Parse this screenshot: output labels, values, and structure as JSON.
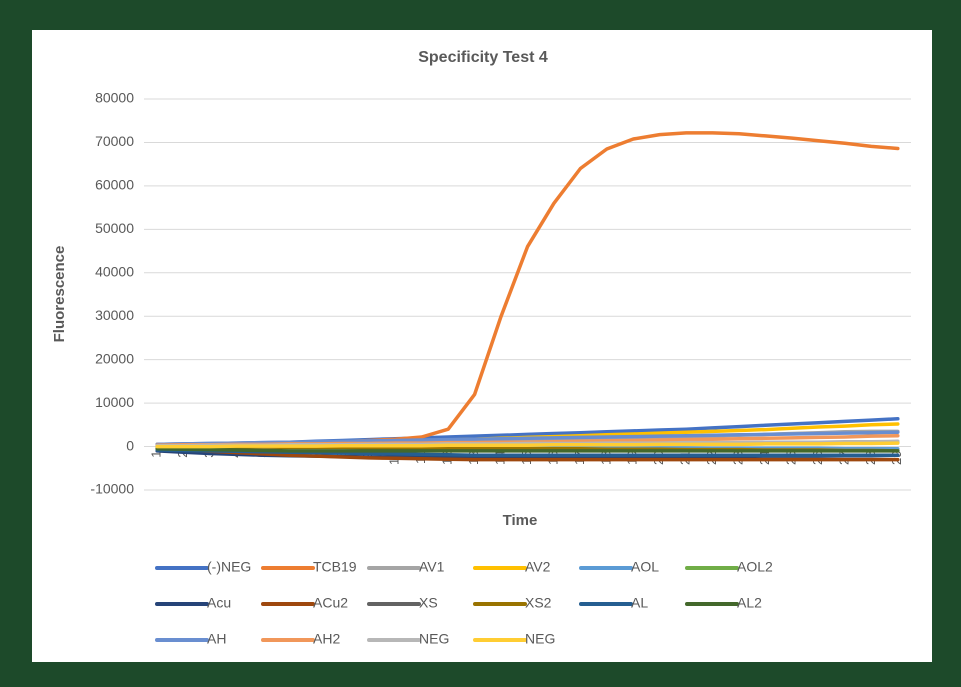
{
  "chart_data": {
    "type": "line",
    "title": "Specificity Test 4",
    "x_label": "Time",
    "y_label": "Fluorescence",
    "categories": [
      "1",
      "2",
      "3",
      "4",
      "5",
      "6",
      "7",
      "8",
      "9",
      "10",
      "11",
      "12",
      "13",
      "14",
      "15",
      "16",
      "17",
      "18",
      "19",
      "20",
      "21",
      "22",
      "23",
      "24",
      "25",
      "26",
      "27",
      "28",
      "29"
    ],
    "ylim": [
      -10000,
      80000
    ],
    "yticks": [
      -10000,
      0,
      10000,
      20000,
      30000,
      40000,
      50000,
      60000,
      70000,
      80000
    ],
    "grid": true,
    "legend": "bottom",
    "series": [
      {
        "name": "(-)NEG",
        "color": "#4472c4",
        "values": [
          500,
          600,
          700,
          800,
          900,
          1000,
          1200,
          1400,
          1600,
          1800,
          2000,
          2200,
          2400,
          2600,
          2800,
          3000,
          3200,
          3400,
          3600,
          3800,
          4000,
          4300,
          4600,
          4900,
          5200,
          5500,
          5800,
          6100,
          6400
        ]
      },
      {
        "name": "TCB19",
        "color": "#ed7d31",
        "values": [
          500,
          300,
          300,
          400,
          500,
          700,
          900,
          1100,
          1400,
          1700,
          2200,
          4000,
          12000,
          30000,
          46000,
          56000,
          64000,
          68500,
          70800,
          71800,
          72200,
          72200,
          72000,
          71500,
          71000,
          70400,
          69800,
          69100,
          68600
        ]
      },
      {
        "name": "AV1",
        "color": "#a5a5a5",
        "values": [
          300,
          400,
          500,
          600,
          700,
          800,
          900,
          1000,
          1100,
          1200,
          1300,
          1400,
          1500,
          1600,
          1700,
          1800,
          1900,
          2000,
          2100,
          2200,
          2300,
          2400,
          2600,
          2800,
          3000,
          3200,
          3400,
          3500,
          3500
        ]
      },
      {
        "name": "AV2",
        "color": "#ffc000",
        "values": [
          200,
          300,
          400,
          500,
          600,
          700,
          800,
          900,
          1000,
          1100,
          1300,
          1500,
          1700,
          1900,
          2100,
          2300,
          2500,
          2700,
          2900,
          3100,
          3300,
          3500,
          3700,
          3900,
          4200,
          4500,
          4700,
          5000,
          5200
        ]
      },
      {
        "name": "AOL",
        "color": "#5b9bd5",
        "values": [
          300,
          300,
          200,
          200,
          100,
          100,
          0,
          0,
          0,
          -100,
          -100,
          -100,
          -200,
          -200,
          -200,
          -200,
          -300,
          -300,
          -300,
          -300,
          -300,
          -400,
          -400,
          -400,
          -400,
          -400,
          -500,
          -500,
          -500
        ]
      },
      {
        "name": "AOL2",
        "color": "#70ad47",
        "values": [
          100,
          100,
          100,
          200,
          200,
          200,
          300,
          300,
          300,
          400,
          400,
          400,
          500,
          500,
          500,
          600,
          600,
          600,
          700,
          700,
          700,
          800,
          800,
          800,
          900,
          900,
          900,
          1000,
          1000
        ]
      },
      {
        "name": "Acu",
        "color": "#264478",
        "values": [
          -1000,
          -1300,
          -1600,
          -1800,
          -2000,
          -2100,
          -2200,
          -2300,
          -2400,
          -2400,
          -2500,
          -2500,
          -2500,
          -2500,
          -2500,
          -2500,
          -2500,
          -2400,
          -2400,
          -2400,
          -2300,
          -2300,
          -2300,
          -2200,
          -2200,
          -2200,
          -2100,
          -2100,
          -2000
        ]
      },
      {
        "name": "ACu2",
        "color": "#9e480e",
        "values": [
          -500,
          -800,
          -1100,
          -1400,
          -1700,
          -2000,
          -2200,
          -2400,
          -2600,
          -2700,
          -2800,
          -2900,
          -3000,
          -3000,
          -3000,
          -3000,
          -3000,
          -3000,
          -3000,
          -3000,
          -3000,
          -3000,
          -3000,
          -3000,
          -3000,
          -3000,
          -3000,
          -3000,
          -3000
        ]
      },
      {
        "name": "XS",
        "color": "#636363",
        "values": [
          0,
          0,
          100,
          100,
          100,
          200,
          200,
          200,
          300,
          300,
          300,
          400,
          400,
          400,
          500,
          500,
          500,
          600,
          600,
          600,
          700,
          700,
          700,
          800,
          800,
          800,
          900,
          900,
          1000
        ]
      },
      {
        "name": "XS2",
        "color": "#997300",
        "values": [
          0,
          0,
          -100,
          -100,
          -100,
          -200,
          -200,
          -200,
          -300,
          -300,
          -300,
          -400,
          -400,
          -400,
          -500,
          -500,
          -500,
          -600,
          -600,
          -600,
          -700,
          -700,
          -700,
          -800,
          -800,
          -800,
          -900,
          -900,
          -1000
        ]
      },
      {
        "name": "AL",
        "color": "#255e91",
        "values": [
          -800,
          -900,
          -1000,
          -1100,
          -1200,
          -1300,
          -1400,
          -1500,
          -1600,
          -1700,
          -1800,
          -1900,
          -2000,
          -2000,
          -2000,
          -2000,
          -2000,
          -2000,
          -2000,
          -2000,
          -2000,
          -2000,
          -2000,
          -2000,
          -2000,
          -2000,
          -2000,
          -2000,
          -2000
        ]
      },
      {
        "name": "AL2",
        "color": "#43682b",
        "values": [
          -500,
          -600,
          -700,
          -800,
          -900,
          -1000,
          -1000,
          -1000,
          -1000,
          -1000,
          -1000,
          -1000,
          -1000,
          -1000,
          -1000,
          -1000,
          -1000,
          -1000,
          -1000,
          -1000,
          -1000,
          -1000,
          -1000,
          -1000,
          -1000,
          -1000,
          -1000,
          -1000,
          -1000
        ]
      },
      {
        "name": "AH",
        "color": "#698ed0",
        "values": [
          500,
          600,
          700,
          800,
          900,
          1000,
          1100,
          1200,
          1300,
          1400,
          1500,
          1600,
          1700,
          1800,
          1900,
          2000,
          2100,
          2200,
          2300,
          2400,
          2500,
          2600,
          2700,
          2800,
          2900,
          3000,
          3100,
          3200,
          3300
        ]
      },
      {
        "name": "AH2",
        "color": "#f1975a",
        "values": [
          300,
          400,
          400,
          500,
          500,
          600,
          600,
          700,
          700,
          800,
          800,
          900,
          900,
          1000,
          1000,
          1100,
          1200,
          1300,
          1400,
          1500,
          1600,
          1700,
          1800,
          1900,
          2000,
          2100,
          2200,
          2400,
          2500
        ]
      },
      {
        "name": "NEG",
        "color": "#b7b7b7",
        "values": [
          200,
          200,
          300,
          300,
          300,
          400,
          400,
          400,
          500,
          500,
          500,
          600,
          600,
          600,
          700,
          700,
          700,
          800,
          800,
          800,
          900,
          900,
          900,
          1000,
          1000,
          1000,
          1100,
          1100,
          1200
        ]
      },
      {
        "name": "NEG",
        "color": "#ffcd33",
        "values": [
          0,
          0,
          0,
          100,
          100,
          100,
          100,
          200,
          200,
          200,
          200,
          300,
          300,
          300,
          300,
          400,
          400,
          400,
          400,
          500,
          500,
          500,
          500,
          600,
          600,
          600,
          700,
          700,
          800
        ]
      }
    ]
  }
}
